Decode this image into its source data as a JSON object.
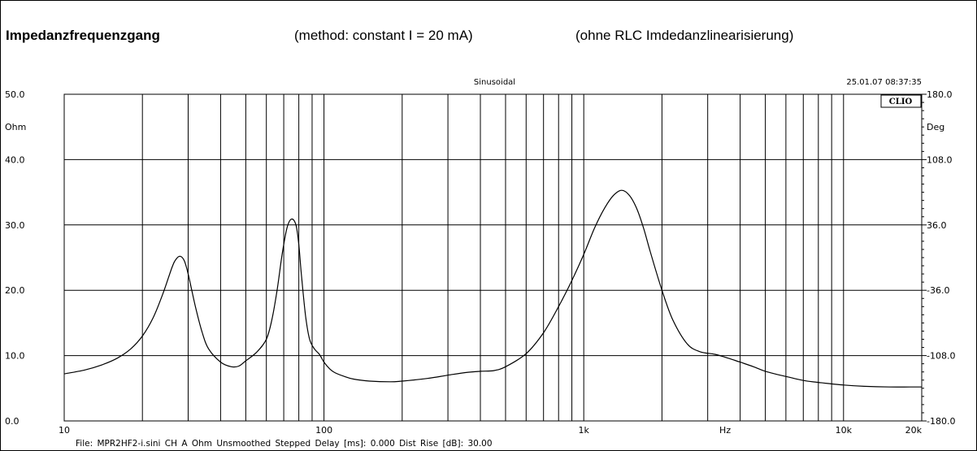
{
  "header": {
    "title": "Impedanzfrequenzgang",
    "method": "(method: constant I = 20 mA)",
    "note": "(ohne RLC Imdedanzlinearisierung)"
  },
  "chart_data": {
    "type": "line",
    "title": "Sinusoidal",
    "timestamp": "25.01.07 08:37:35",
    "logo": "CLIO",
    "x_scale": "log",
    "xlim": [
      10,
      20000
    ],
    "ylim": [
      0,
      50
    ],
    "y2lim": [
      -180,
      180
    ],
    "ylabel": "Ohm",
    "y2label": "Deg",
    "xunit": "Hz",
    "grid": true,
    "x_tick_labels": [
      {
        "value": 10,
        "label": "10"
      },
      {
        "value": 100,
        "label": "100"
      },
      {
        "value": 1000,
        "label": "1k"
      },
      {
        "value": 10000,
        "label": "10k"
      },
      {
        "value": 20000,
        "label": "20k"
      }
    ],
    "y_tick_labels": [
      "0.0",
      "10.0",
      "20.0",
      "30.0",
      "40.0",
      "50.0"
    ],
    "y2_tick_labels": [
      "-180.0",
      "-108.0",
      "-36.0",
      "36.0",
      "108.0",
      "180.0"
    ],
    "series": [
      {
        "x": [
          10,
          12,
          14,
          16,
          18,
          20,
          22,
          24,
          26,
          27,
          28,
          29,
          30,
          32,
          34,
          36,
          40,
          44,
          47,
          50,
          55,
          60,
          63,
          66,
          69,
          72,
          75,
          78,
          80,
          82,
          85,
          88,
          92,
          96,
          100,
          105,
          110,
          120,
          130,
          150,
          180,
          200,
          250,
          300,
          350,
          400,
          450,
          500,
          600,
          700,
          800,
          900,
          1000,
          1100,
          1200,
          1300,
          1400,
          1500,
          1600,
          1700,
          1800,
          2000,
          2200,
          2500,
          2800,
          3200,
          3600,
          4000,
          4500,
          5000,
          6000,
          7000,
          8000,
          10000,
          12000,
          15000,
          18000,
          20000
        ],
        "y": [
          7.2,
          7.8,
          8.6,
          9.6,
          11.0,
          13.0,
          15.8,
          19.5,
          23.5,
          24.8,
          25.2,
          24.5,
          22.5,
          17.5,
          13.5,
          11.0,
          9.0,
          8.3,
          8.4,
          9.2,
          10.5,
          12.5,
          15.5,
          20.0,
          25.5,
          29.5,
          30.9,
          30.0,
          27.0,
          22.0,
          16.0,
          12.5,
          11.0,
          10.2,
          9.0,
          8.0,
          7.4,
          6.8,
          6.4,
          6.1,
          6.0,
          6.1,
          6.5,
          7.0,
          7.4,
          7.6,
          7.7,
          8.3,
          10.3,
          13.5,
          17.5,
          21.5,
          25.5,
          29.5,
          32.5,
          34.5,
          35.3,
          34.5,
          32.5,
          29.5,
          26.0,
          20.0,
          15.5,
          11.8,
          10.6,
          10.2,
          9.6,
          9.0,
          8.3,
          7.6,
          6.8,
          6.2,
          5.9,
          5.5,
          5.3,
          5.2,
          5.2,
          5.2
        ]
      }
    ]
  },
  "footer": {
    "text": "File: MPR2HF2-i.sini    CH A   Ohm   Unsmoothed   Stepped    Delay [ms]: 0.000    Dist Rise [dB]: 30.00"
  }
}
